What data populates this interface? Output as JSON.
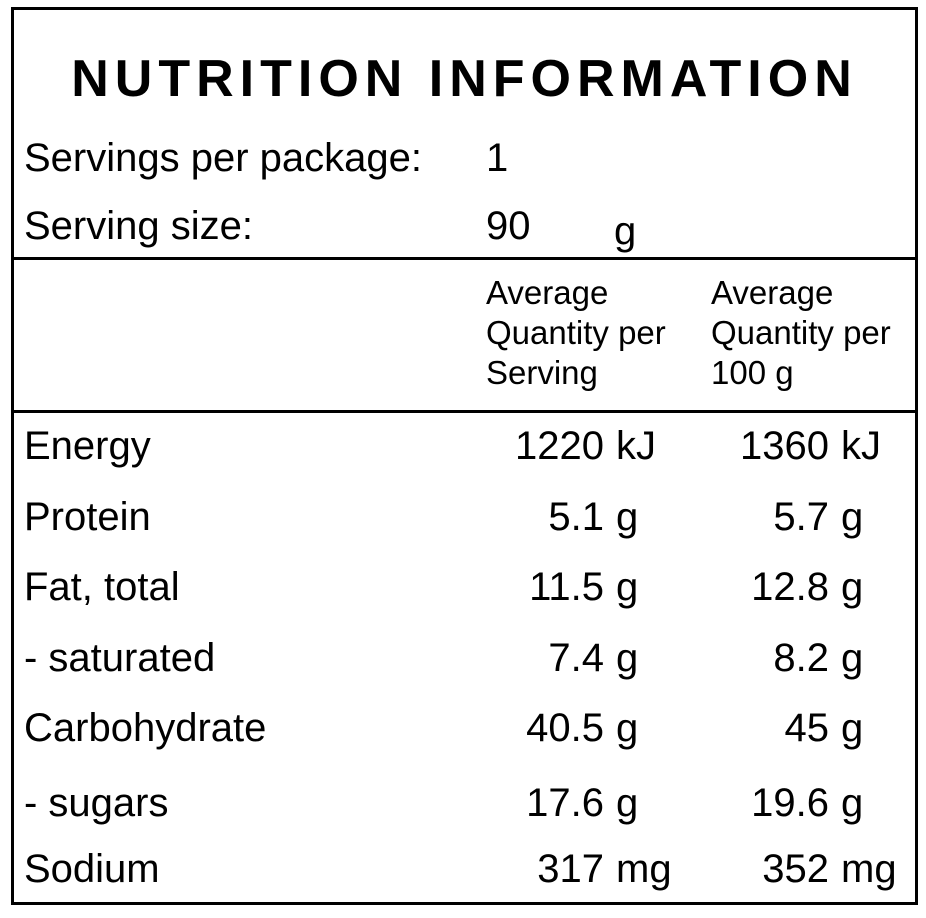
{
  "panel": {
    "title": "NUTRITION INFORMATION",
    "servings_label": "Servings per package:",
    "servings_value": "1",
    "size_label": "Serving size:",
    "size_value": "90",
    "size_unit": "g"
  },
  "columns": {
    "per_serving": [
      "Average",
      "Quantity per",
      "Serving"
    ],
    "per_100g": [
      "Average",
      "Quantity per",
      "100 g"
    ]
  },
  "rows": [
    {
      "name": "Energy",
      "serving": "1220",
      "serving_unit": "kJ",
      "per100": "1360",
      "per100_unit": "kJ"
    },
    {
      "name": "Protein",
      "serving": "5.1",
      "serving_unit": "g",
      "per100": "5.7",
      "per100_unit": "g"
    },
    {
      "name": "Fat, total",
      "serving": "11.5",
      "serving_unit": "g",
      "per100": "12.8",
      "per100_unit": "g"
    },
    {
      "name": "- saturated",
      "serving": "7.4",
      "serving_unit": "g",
      "per100": "8.2",
      "per100_unit": "g"
    },
    {
      "name": "Carbohydrate",
      "serving": "40.5",
      "serving_unit": "g",
      "per100": "45",
      "per100_unit": "g"
    },
    {
      "name": "- sugars",
      "serving": "17.6",
      "serving_unit": "g",
      "per100": "19.6",
      "per100_unit": "g"
    },
    {
      "name": "Sodium",
      "serving": "317",
      "serving_unit": "mg",
      "per100": "352",
      "per100_unit": "mg"
    }
  ]
}
